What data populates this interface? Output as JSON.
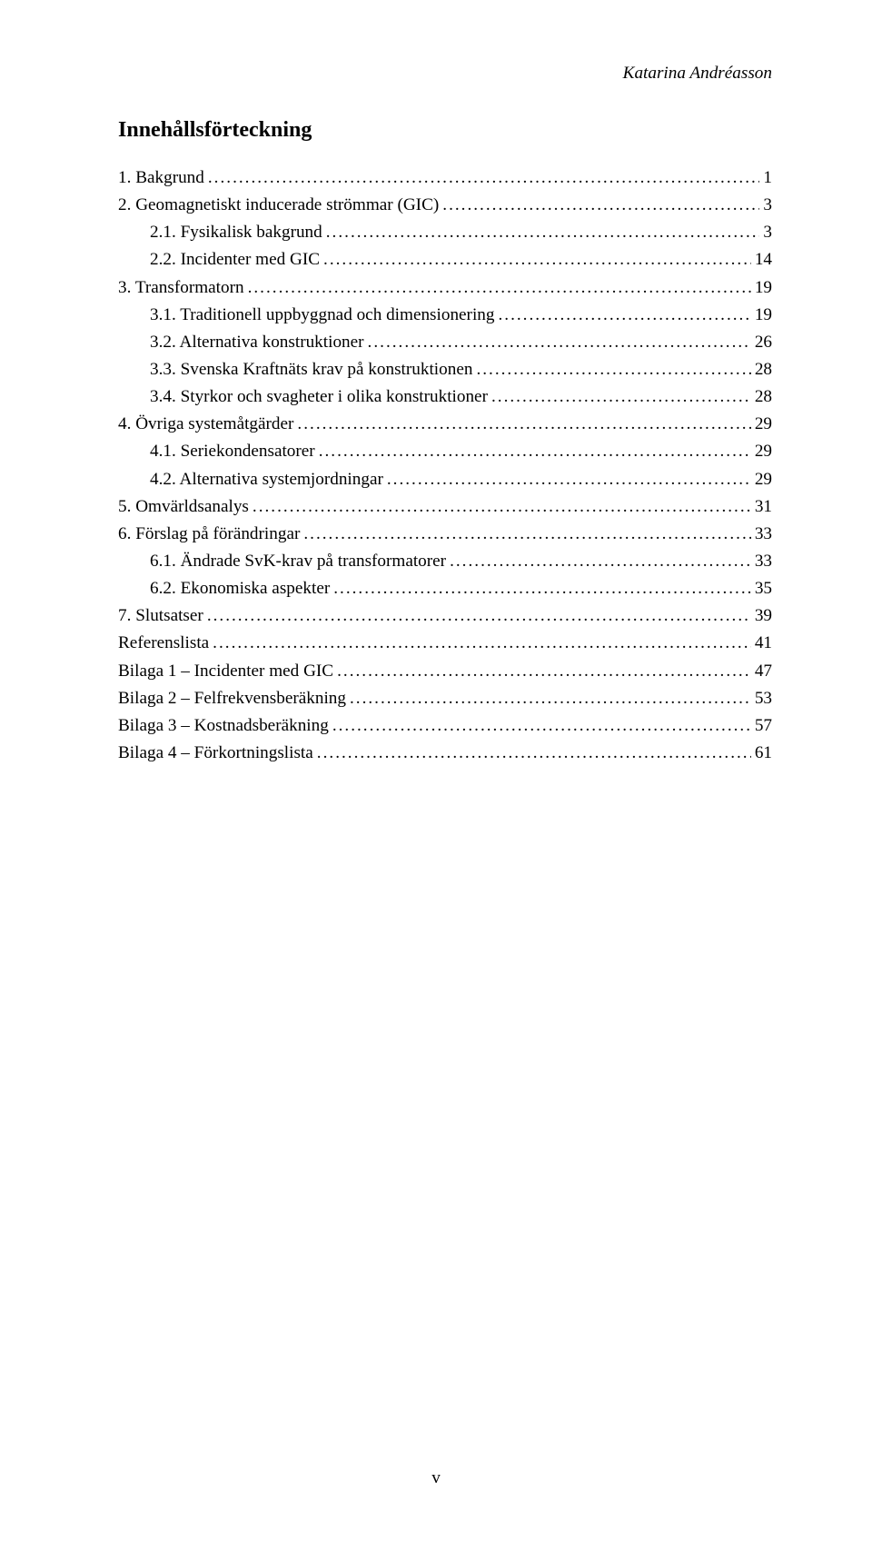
{
  "header": {
    "author": "Katarina Andréasson"
  },
  "title": "Innehållsförteckning",
  "toc": [
    {
      "label": "1.   Bakgrund",
      "page": "1",
      "indent": 0
    },
    {
      "label": "2.   Geomagnetiskt inducerade strömmar (GIC)",
      "page": "3",
      "indent": 0
    },
    {
      "label": "2.1.   Fysikalisk bakgrund",
      "page": "3",
      "indent": 1
    },
    {
      "label": "2.2.   Incidenter med GIC",
      "page": "14",
      "indent": 1
    },
    {
      "label": "3.   Transformatorn",
      "page": "19",
      "indent": 0
    },
    {
      "label": "3.1.   Traditionell uppbyggnad och dimensionering",
      "page": "19",
      "indent": 1
    },
    {
      "label": "3.2.   Alternativa konstruktioner",
      "page": "26",
      "indent": 1
    },
    {
      "label": "3.3.   Svenska Kraftnäts krav på konstruktionen",
      "page": "28",
      "indent": 1
    },
    {
      "label": "3.4.   Styrkor och svagheter i olika konstruktioner",
      "page": "28",
      "indent": 1
    },
    {
      "label": "4.   Övriga systemåtgärder",
      "page": "29",
      "indent": 0
    },
    {
      "label": "4.1.   Seriekondensatorer",
      "page": "29",
      "indent": 1
    },
    {
      "label": "4.2.   Alternativa systemjordningar",
      "page": "29",
      "indent": 1
    },
    {
      "label": "5.   Omvärldsanalys",
      "page": "31",
      "indent": 0
    },
    {
      "label": "6.   Förslag på förändringar",
      "page": "33",
      "indent": 0
    },
    {
      "label": "6.1.   Ändrade SvK-krav på transformatorer",
      "page": "33",
      "indent": 1
    },
    {
      "label": "6.2.   Ekonomiska aspekter",
      "page": "35",
      "indent": 1
    },
    {
      "label": "7.   Slutsatser",
      "page": "39",
      "indent": 0
    },
    {
      "label": "Referenslista",
      "page": "41",
      "indent": 0
    },
    {
      "label": "Bilaga 1 – Incidenter med GIC",
      "page": "47",
      "indent": 0
    },
    {
      "label": "Bilaga 2 – Felfrekvensberäkning",
      "page": "53",
      "indent": 0
    },
    {
      "label": "Bilaga 3 – Kostnadsberäkning",
      "page": "57",
      "indent": 0
    },
    {
      "label": "Bilaga 4 – Förkortningslista",
      "page": "61",
      "indent": 0
    }
  ],
  "pageNumber": "v"
}
